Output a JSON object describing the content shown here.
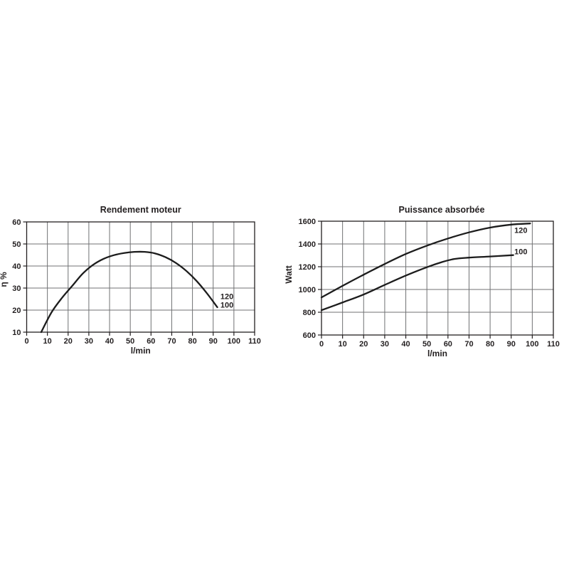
{
  "page": {
    "background": "#ffffff"
  },
  "colors": {
    "text": "#231f20",
    "grid": "#707173",
    "axis": "#231f20",
    "curve": "#1c1c1c"
  },
  "chart_data": [
    {
      "id": "rendement-moteur",
      "type": "line",
      "title": "Rendement moteur",
      "xlabel": "l/min",
      "ylabel": "η %",
      "xlim": [
        0,
        110
      ],
      "ylim": [
        10,
        60
      ],
      "xticks": [
        0,
        10,
        20,
        30,
        40,
        50,
        60,
        70,
        80,
        90,
        100,
        110
      ],
      "yticks": [
        10,
        20,
        30,
        40,
        50,
        60
      ],
      "grid": true,
      "legend_position": "none",
      "series": [
        {
          "name": "rendement-120-100",
          "label": "120 / 100",
          "points": [
            [
              7,
              10
            ],
            [
              12,
              19
            ],
            [
              17,
              25.5
            ],
            [
              22,
              31
            ],
            [
              27,
              36.5
            ],
            [
              32,
              40.5
            ],
            [
              37,
              43.2
            ],
            [
              42,
              44.9
            ],
            [
              47,
              45.9
            ],
            [
              52,
              46.4
            ],
            [
              57,
              46.4
            ],
            [
              62,
              45.7
            ],
            [
              67,
              44
            ],
            [
              72,
              41.4
            ],
            [
              77,
              37.8
            ],
            [
              82,
              33.2
            ],
            [
              87,
              27.6
            ],
            [
              92,
              21.3
            ]
          ]
        }
      ],
      "annotations": [
        {
          "text": "120",
          "x": 93.5,
          "y": 26.2
        },
        {
          "text": "100",
          "x": 93.5,
          "y": 22.4
        }
      ]
    },
    {
      "id": "puissance-absorbee",
      "type": "line",
      "title": "Puissance absorbée",
      "xlabel": "l/min",
      "ylabel": "Watt",
      "xlim": [
        0,
        110
      ],
      "ylim": [
        600,
        1600
      ],
      "xticks": [
        0,
        10,
        20,
        30,
        40,
        50,
        60,
        70,
        80,
        90,
        100,
        110
      ],
      "yticks": [
        600,
        800,
        1000,
        1200,
        1400,
        1600
      ],
      "grid": true,
      "legend_position": "none",
      "series": [
        {
          "name": "puissance-120",
          "label": "120",
          "points": [
            [
              0,
              930
            ],
            [
              10,
              1032
            ],
            [
              20,
              1130
            ],
            [
              30,
              1224
            ],
            [
              40,
              1312
            ],
            [
              50,
              1385
            ],
            [
              60,
              1448
            ],
            [
              70,
              1502
            ],
            [
              80,
              1544
            ],
            [
              90,
              1570
            ],
            [
              99,
              1580
            ]
          ]
        },
        {
          "name": "puissance-100",
          "label": "100",
          "points": [
            [
              0,
              818
            ],
            [
              10,
              886
            ],
            [
              20,
              956
            ],
            [
              30,
              1040
            ],
            [
              40,
              1122
            ],
            [
              50,
              1196
            ],
            [
              57,
              1240
            ],
            [
              63,
              1268
            ],
            [
              70,
              1280
            ],
            [
              80,
              1290
            ],
            [
              91,
              1302
            ]
          ]
        }
      ],
      "annotations": [
        {
          "text": "120",
          "x": 91.5,
          "y": 1520
        },
        {
          "text": "100",
          "x": 91.5,
          "y": 1332
        }
      ]
    }
  ]
}
